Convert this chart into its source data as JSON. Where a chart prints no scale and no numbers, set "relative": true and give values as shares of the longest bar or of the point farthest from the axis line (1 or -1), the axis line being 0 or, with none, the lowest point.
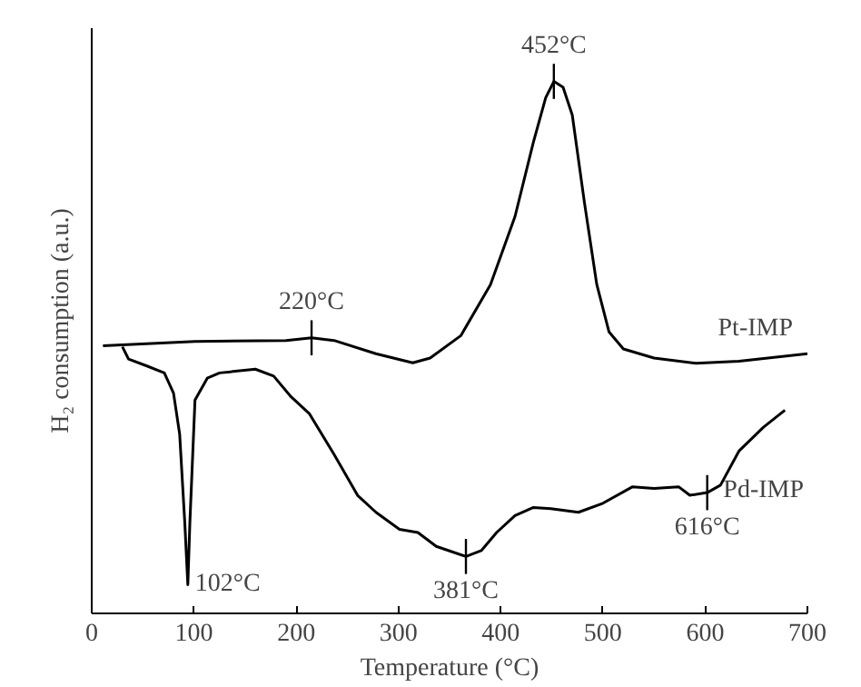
{
  "chart_data": {
    "type": "line",
    "relative": true,
    "xlabel": "Temperature (°C)",
    "ylabel": "H₂ consumption (a.u.)",
    "xlim": [
      0,
      700
    ],
    "xticks": [
      0,
      100,
      200,
      300,
      400,
      500,
      600,
      700
    ],
    "grid": false,
    "line_style": "solid",
    "marker": "none",
    "series": [
      {
        "name": "Pt-IMP",
        "color": "#000000",
        "x": [
          11,
          101,
          190,
          215,
          237,
          278,
          314,
          331,
          361,
          390,
          414,
          432,
          444,
          452,
          461,
          470,
          482,
          494,
          506,
          520,
          550,
          591,
          633,
          700
        ],
        "values": [
          0.503,
          0.511,
          0.513,
          0.518,
          0.513,
          0.488,
          0.471,
          0.48,
          0.522,
          0.618,
          0.746,
          0.886,
          0.969,
          1.0,
          0.989,
          0.937,
          0.771,
          0.618,
          0.529,
          0.497,
          0.48,
          0.47,
          0.474,
          0.488
        ]
      },
      {
        "name": "Pd-IMP",
        "color": "#000000",
        "x": [
          30,
          36,
          54,
          71,
          80,
          86,
          91,
          94,
          96,
          101,
          113,
          125,
          160,
          178,
          195,
          213,
          237,
          260,
          278,
          301,
          319,
          337,
          366,
          381,
          396,
          414,
          432,
          449,
          476,
          500,
          529,
          550,
          574,
          585,
          602,
          615,
          633,
          657,
          678
        ],
        "values": [
          0.501,
          0.478,
          0.465,
          0.452,
          0.414,
          0.337,
          0.171,
          0.054,
          0.171,
          0.401,
          0.442,
          0.452,
          0.459,
          0.446,
          0.407,
          0.375,
          0.299,
          0.222,
          0.19,
          0.158,
          0.152,
          0.126,
          0.107,
          0.118,
          0.152,
          0.184,
          0.199,
          0.197,
          0.19,
          0.207,
          0.238,
          0.235,
          0.238,
          0.222,
          0.227,
          0.241,
          0.305,
          0.35,
          0.382
        ]
      }
    ],
    "annotations": [
      {
        "text": "452°C",
        "x": 452,
        "y": 1.0
      },
      {
        "text": "220°C",
        "x": 215,
        "y": 0.518
      },
      {
        "text": "102°C",
        "x": 94,
        "y": 0.054
      },
      {
        "text": "381°C",
        "x": 366,
        "y": 0.107
      },
      {
        "text": "616°C",
        "x": 602,
        "y": 0.227
      }
    ]
  }
}
